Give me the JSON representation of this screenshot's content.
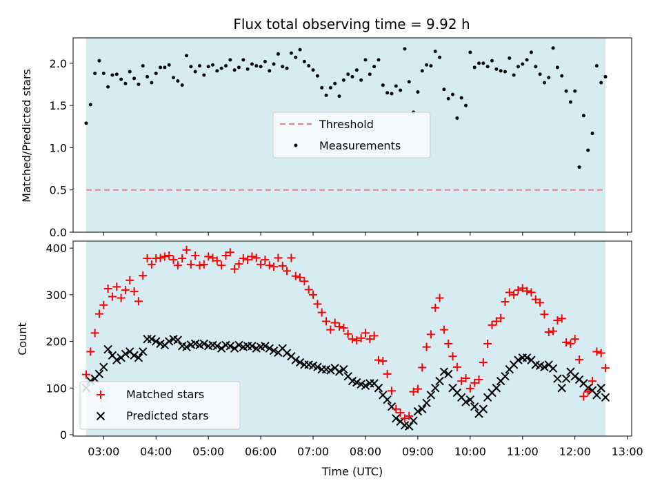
{
  "title": "Flux total observing time = 9.92 h",
  "colors": {
    "span_fill": "#add8e6",
    "threshold": "#f08080",
    "measurement": "#000000",
    "matched": "#ff0000",
    "predicted": "#000000"
  },
  "chart_data": [
    {
      "type": "scatter",
      "ylabel": "Matched/Predicted stars",
      "ylim": [
        0,
        2.3
      ],
      "xlim": [
        "02:25",
        "13:05"
      ],
      "y_ticks": [
        "0.0",
        "0.5",
        "1.0",
        "1.5",
        "2.0"
      ],
      "highlight_span": [
        "02:40",
        "12:35"
      ],
      "threshold": 0.5,
      "legend": {
        "placement": "center",
        "entries": [
          "Threshold",
          "Measurements"
        ]
      },
      "series": [
        {
          "name": "Measurements",
          "x": [
            "02:40",
            "02:45",
            "02:50",
            "02:55",
            "03:00",
            "03:05",
            "03:10",
            "03:15",
            "03:20",
            "03:25",
            "03:30",
            "03:35",
            "03:40",
            "03:45",
            "03:50",
            "03:55",
            "04:00",
            "04:05",
            "04:10",
            "04:15",
            "04:20",
            "04:25",
            "04:30",
            "04:35",
            "04:40",
            "04:45",
            "04:50",
            "04:55",
            "05:00",
            "05:05",
            "05:10",
            "05:15",
            "05:20",
            "05:25",
            "05:30",
            "05:35",
            "05:40",
            "05:45",
            "05:50",
            "05:55",
            "06:00",
            "06:05",
            "06:10",
            "06:15",
            "06:20",
            "06:25",
            "06:30",
            "06:35",
            "06:40",
            "06:45",
            "06:50",
            "06:55",
            "07:00",
            "07:05",
            "07:10",
            "07:15",
            "07:20",
            "07:25",
            "07:30",
            "07:35",
            "07:40",
            "07:45",
            "07:50",
            "07:55",
            "08:00",
            "08:05",
            "08:10",
            "08:15",
            "08:20",
            "08:25",
            "08:30",
            "08:35",
            "08:40",
            "08:45",
            "08:50",
            "08:55",
            "09:00",
            "09:05",
            "09:10",
            "09:15",
            "09:20",
            "09:25",
            "09:30",
            "09:35",
            "09:40",
            "09:45",
            "09:50",
            "09:55",
            "10:00",
            "10:05",
            "10:10",
            "10:15",
            "10:20",
            "10:25",
            "10:30",
            "10:35",
            "10:40",
            "10:45",
            "10:50",
            "10:55",
            "11:00",
            "11:05",
            "11:10",
            "11:15",
            "11:20",
            "11:25",
            "11:30",
            "11:35",
            "11:40",
            "11:45",
            "11:50",
            "11:55",
            "12:00",
            "12:05",
            "12:10",
            "12:15",
            "12:20",
            "12:25",
            "12:30",
            "12:35"
          ],
          "values": [
            1.29,
            1.51,
            1.88,
            2.03,
            1.88,
            1.72,
            1.86,
            1.87,
            1.81,
            1.76,
            1.9,
            1.82,
            1.75,
            1.97,
            1.84,
            1.77,
            1.88,
            1.95,
            1.95,
            1.98,
            1.83,
            1.79,
            1.74,
            2.09,
            1.96,
            1.9,
            1.97,
            1.86,
            1.96,
            1.98,
            1.91,
            1.94,
            1.97,
            2.04,
            1.92,
            1.95,
            2.04,
            1.93,
            1.99,
            1.97,
            1.96,
            2.02,
            1.91,
            1.99,
            2.11,
            1.96,
            1.94,
            2.12,
            2.07,
            2.16,
            2.02,
            1.97,
            1.92,
            1.85,
            1.71,
            1.62,
            1.71,
            1.76,
            1.61,
            1.8,
            1.87,
            1.84,
            1.92,
            1.8,
            2.04,
            1.87,
            1.96,
            2.04,
            1.74,
            1.65,
            1.64,
            1.73,
            1.68,
            2.17,
            1.78,
            1.42,
            1.66,
            1.91,
            1.98,
            1.97,
            2.14,
            2.07,
            1.69,
            1.58,
            1.63,
            1.35,
            1.59,
            1.5,
            2.13,
            1.95,
            2.0,
            2.0,
            1.96,
            2.03,
            1.93,
            1.91,
            1.9,
            2.06,
            1.86,
            1.96,
            1.99,
            2.04,
            2.13,
            1.96,
            1.87,
            1.77,
            1.83,
            2.18,
            1.95,
            1.85,
            1.67,
            1.54,
            1.67,
            0.77,
            1.38,
            0.97,
            1.17,
            1.97,
            1.77,
            1.84
          ]
        }
      ]
    },
    {
      "type": "scatter",
      "xlabel": "Time (UTC)",
      "ylabel": "Count",
      "ylim": [
        -3,
        415
      ],
      "xlim": [
        "02:25",
        "13:05"
      ],
      "x_ticks": [
        "03:00",
        "04:00",
        "05:00",
        "06:00",
        "07:00",
        "08:00",
        "09:00",
        "10:00",
        "11:00",
        "12:00",
        "13:00"
      ],
      "y_ticks": [
        "0",
        "100",
        "200",
        "300",
        "400"
      ],
      "highlight_span": [
        "02:40",
        "12:35"
      ],
      "legend": {
        "placement": "lower-left",
        "entries": [
          "Matched stars",
          "Predicted stars"
        ]
      },
      "x": [
        "02:40",
        "02:45",
        "02:50",
        "02:55",
        "03:00",
        "03:05",
        "03:10",
        "03:15",
        "03:20",
        "03:25",
        "03:30",
        "03:35",
        "03:40",
        "03:45",
        "03:50",
        "03:55",
        "04:00",
        "04:05",
        "04:10",
        "04:15",
        "04:20",
        "04:25",
        "04:30",
        "04:35",
        "04:40",
        "04:45",
        "04:50",
        "04:55",
        "05:00",
        "05:05",
        "05:10",
        "05:15",
        "05:20",
        "05:25",
        "05:30",
        "05:35",
        "05:40",
        "05:45",
        "05:50",
        "05:55",
        "06:00",
        "06:05",
        "06:10",
        "06:15",
        "06:20",
        "06:25",
        "06:30",
        "06:35",
        "06:40",
        "06:45",
        "06:50",
        "06:55",
        "07:00",
        "07:05",
        "07:10",
        "07:15",
        "07:20",
        "07:25",
        "07:30",
        "07:35",
        "07:40",
        "07:45",
        "07:50",
        "07:55",
        "08:00",
        "08:05",
        "08:10",
        "08:15",
        "08:20",
        "08:25",
        "08:30",
        "08:35",
        "08:40",
        "08:45",
        "08:50",
        "08:55",
        "09:00",
        "09:05",
        "09:10",
        "09:15",
        "09:20",
        "09:25",
        "09:30",
        "09:35",
        "09:40",
        "09:45",
        "09:50",
        "09:55",
        "10:00",
        "10:05",
        "10:10",
        "10:15",
        "10:20",
        "10:25",
        "10:30",
        "10:35",
        "10:40",
        "10:45",
        "10:50",
        "10:55",
        "11:00",
        "11:05",
        "11:10",
        "11:15",
        "11:20",
        "11:25",
        "11:30",
        "11:35",
        "11:40",
        "11:45",
        "11:50",
        "11:55",
        "12:00",
        "12:05",
        "12:10",
        "12:15",
        "12:20",
        "12:25",
        "12:30",
        "12:35"
      ],
      "series": [
        {
          "name": "Matched stars",
          "marker": "+",
          "values": [
            129,
            178,
            218,
            259,
            278,
            313,
            296,
            317,
            293,
            310,
            331,
            307,
            286,
            341,
            378,
            365,
            378,
            379,
            382,
            384,
            375,
            363,
            378,
            396,
            365,
            384,
            363,
            365,
            382,
            379,
            373,
            363,
            384,
            391,
            355,
            366,
            378,
            375,
            382,
            379,
            365,
            375,
            363,
            360,
            379,
            362,
            351,
            379,
            340,
            337,
            329,
            311,
            300,
            280,
            262,
            243,
            225,
            240,
            232,
            229,
            216,
            205,
            202,
            207,
            218,
            205,
            212,
            160,
            158,
            130,
            94,
            55,
            47,
            35,
            40,
            92,
            98,
            144,
            188,
            215,
            272,
            293,
            225,
            195,
            168,
            145,
            115,
            121,
            99,
            111,
            118,
            155,
            195,
            235,
            243,
            250,
            285,
            305,
            300,
            310,
            314,
            308,
            305,
            290,
            283,
            258,
            220,
            222,
            245,
            249,
            198,
            195,
            205,
            161,
            82,
            92,
            115,
            178,
            175,
            143
          ]
        },
        {
          "name": "Predicted stars",
          "marker": "x",
          "values": [
            100,
            115,
            120,
            130,
            145,
            183,
            170,
            160,
            165,
            173,
            178,
            170,
            165,
            178,
            205,
            205,
            200,
            195,
            192,
            200,
            205,
            203,
            190,
            188,
            193,
            195,
            192,
            195,
            190,
            192,
            190,
            185,
            192,
            190,
            185,
            192,
            188,
            190,
            190,
            185,
            188,
            190,
            185,
            180,
            176,
            185,
            175,
            168,
            160,
            155,
            150,
            150,
            148,
            145,
            140,
            140,
            138,
            143,
            135,
            140,
            125,
            115,
            112,
            108,
            105,
            110,
            110,
            100,
            85,
            75,
            60,
            35,
            28,
            20,
            18,
            30,
            50,
            55,
            68,
            85,
            100,
            115,
            135,
            130,
            100,
            90,
            80,
            70,
            75,
            60,
            45,
            55,
            80,
            90,
            100,
            115,
            125,
            140,
            150,
            160,
            165,
            165,
            160,
            150,
            148,
            145,
            150,
            142,
            120,
            100,
            120,
            135,
            125,
            118,
            110,
            100,
            95,
            85,
            100,
            80
          ]
        }
      ]
    }
  ]
}
